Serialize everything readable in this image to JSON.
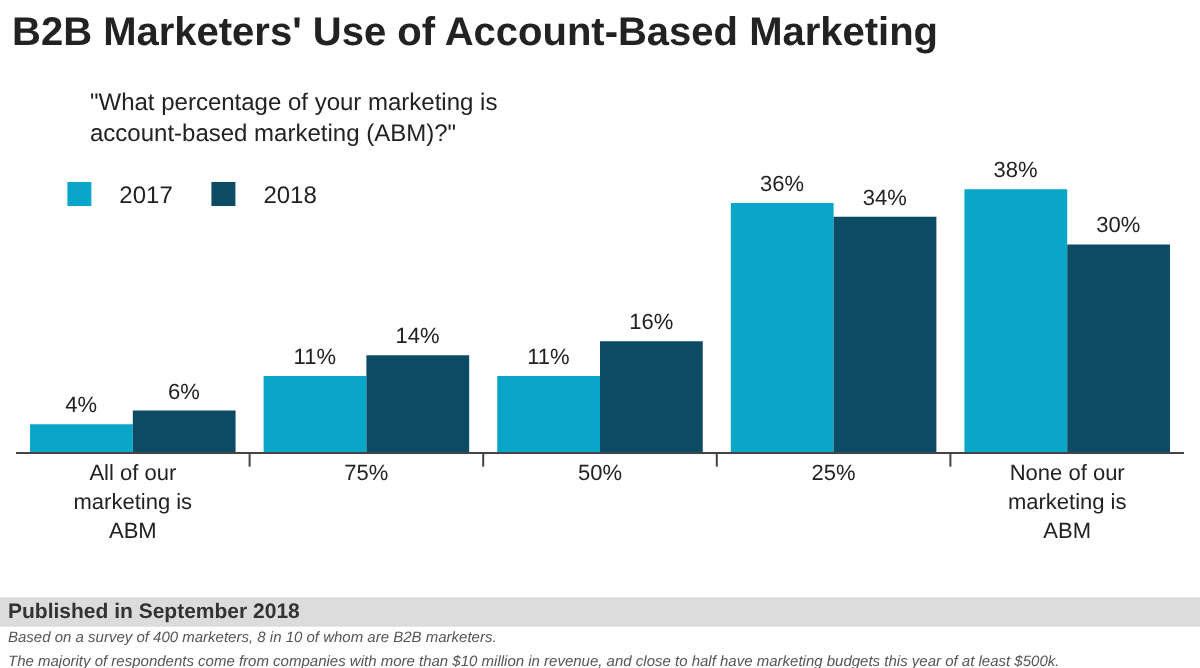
{
  "chart_data": {
    "type": "bar",
    "title": "B2B Marketers' Use of Account-Based Marketing",
    "subtitle": "\"What percentage of your marketing is account-based marketing (ABM)?\"",
    "categories": [
      "All of our marketing is ABM",
      "75%",
      "50%",
      "25%",
      "None of our marketing is ABM"
    ],
    "series": [
      {
        "name": "2017",
        "color": "#0aa6c9",
        "values": [
          4,
          11,
          11,
          36,
          38
        ],
        "value_labels": [
          "4%",
          "11%",
          "11%",
          "36%",
          "38%"
        ]
      },
      {
        "name": "2018",
        "color": "#0b4b63",
        "values": [
          6,
          14,
          16,
          34,
          30
        ],
        "value_labels": [
          "6%",
          "14%",
          "16%",
          "34%",
          "30%"
        ]
      }
    ],
    "legend": "top left",
    "tick_labels": "x",
    "annotations": [
      "Published in September 2018",
      "Based on a survey of 400 marketers, 8 in 10 of whom are B2B marketers.",
      "The majority of respondents come from companies with more than $10 million in revenue, and close to half have marketing budgets this year of at least $500k."
    ]
  }
}
